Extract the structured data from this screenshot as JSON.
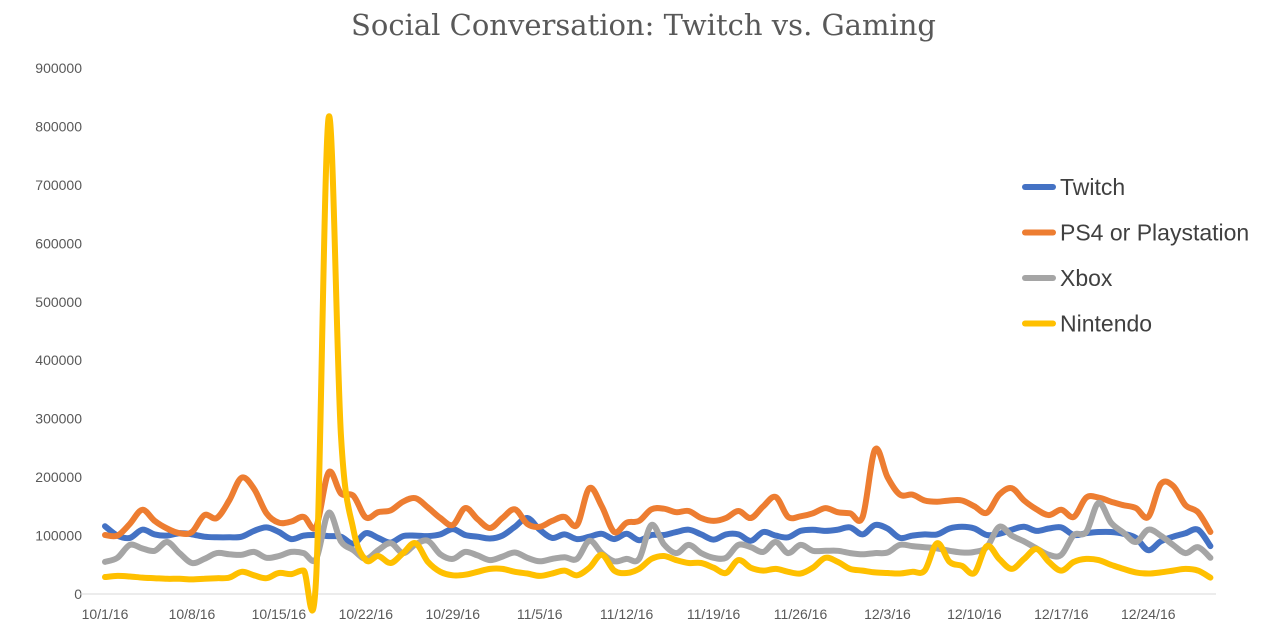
{
  "chart_data": {
    "type": "line",
    "title": "Social Conversation: Twitch vs. Gaming",
    "xlabel": "",
    "ylabel": "",
    "ylim": [
      0,
      900000
    ],
    "y_ticks": [
      "0",
      "100000",
      "200000",
      "300000",
      "400000",
      "500000",
      "600000",
      "700000",
      "800000",
      "900000"
    ],
    "x_tick_labels": [
      "10/1/16",
      "10/8/16",
      "10/15/16",
      "10/22/16",
      "10/29/16",
      "11/5/16",
      "11/12/16",
      "11/19/16",
      "11/26/16",
      "12/3/16",
      "12/10/16",
      "12/17/16",
      "12/24/16"
    ],
    "grid": false,
    "legend_position": "right",
    "x": [
      "10/1/16",
      "10/2/16",
      "10/3/16",
      "10/4/16",
      "10/5/16",
      "10/6/16",
      "10/7/16",
      "10/8/16",
      "10/9/16",
      "10/10/16",
      "10/11/16",
      "10/12/16",
      "10/13/16",
      "10/14/16",
      "10/15/16",
      "10/16/16",
      "10/17/16",
      "10/18/16",
      "10/19/16",
      "10/20/16",
      "10/21/16",
      "10/22/16",
      "10/23/16",
      "10/24/16",
      "10/25/16",
      "10/26/16",
      "10/27/16",
      "10/28/16",
      "10/29/16",
      "10/30/16",
      "10/31/16",
      "11/1/16",
      "11/2/16",
      "11/3/16",
      "11/4/16",
      "11/5/16",
      "11/6/16",
      "11/7/16",
      "11/8/16",
      "11/9/16",
      "11/10/16",
      "11/11/16",
      "11/12/16",
      "11/13/16",
      "11/14/16",
      "11/15/16",
      "11/16/16",
      "11/17/16",
      "11/18/16",
      "11/19/16",
      "11/20/16",
      "11/21/16",
      "11/22/16",
      "11/23/16",
      "11/24/16",
      "11/25/16",
      "11/26/16",
      "11/27/16",
      "11/28/16",
      "11/29/16",
      "11/30/16",
      "12/1/16",
      "12/2/16",
      "12/3/16",
      "12/4/16",
      "12/5/16",
      "12/6/16",
      "12/7/16",
      "12/8/16",
      "12/9/16",
      "12/10/16",
      "12/11/16",
      "12/12/16",
      "12/13/16",
      "12/14/16",
      "12/15/16",
      "12/16/16",
      "12/17/16",
      "12/18/16",
      "12/19/16",
      "12/20/16",
      "12/21/16",
      "12/22/16",
      "12/23/16",
      "12/24/16",
      "12/25/16",
      "12/26/16",
      "12/27/16",
      "12/28/16",
      "12/29/16"
    ],
    "series": [
      {
        "name": "Twitch",
        "color": "#4472C4",
        "values": [
          116000,
          100000,
          96000,
          110000,
          102000,
          100000,
          104000,
          102000,
          98000,
          97000,
          97000,
          98000,
          108000,
          114000,
          106000,
          94000,
          100000,
          101000,
          99000,
          98000,
          86000,
          104000,
          96000,
          88000,
          99000,
          100000,
          99000,
          102000,
          111000,
          101000,
          98000,
          95000,
          100000,
          115000,
          130000,
          110000,
          96000,
          102000,
          94000,
          98000,
          103000,
          94000,
          103000,
          92000,
          101000,
          101000,
          106000,
          110000,
          102000,
          93000,
          102000,
          102000,
          91000,
          106000,
          100000,
          97000,
          108000,
          110000,
          108000,
          110000,
          114000,
          102000,
          118000,
          112000,
          96000,
          100000,
          102000,
          102000,
          112000,
          115000,
          112000,
          101000,
          103000,
          110000,
          115000,
          108000,
          112000,
          114000,
          101000,
          104000,
          106000,
          106000,
          103000,
          96000,
          75000,
          90000,
          98000,
          104000,
          110000,
          82000
        ]
      },
      {
        "name": "PS4 or Playstation",
        "color": "#ED7D31",
        "values": [
          101000,
          100000,
          120000,
          144000,
          125000,
          112000,
          104000,
          106000,
          135000,
          130000,
          160000,
          199000,
          180000,
          138000,
          122000,
          124000,
          132000,
          115000,
          208000,
          172000,
          168000,
          131000,
          140000,
          143000,
          158000,
          164000,
          148000,
          130000,
          118000,
          147000,
          128000,
          113000,
          130000,
          145000,
          120000,
          115000,
          125000,
          132000,
          118000,
          181000,
          150000,
          106000,
          122000,
          125000,
          145000,
          146000,
          140000,
          142000,
          130000,
          125000,
          130000,
          142000,
          130000,
          150000,
          166000,
          132000,
          133000,
          138000,
          147000,
          140000,
          138000,
          132000,
          247000,
          200000,
          170000,
          170000,
          160000,
          158000,
          160000,
          160000,
          150000,
          139000,
          170000,
          181000,
          160000,
          145000,
          135000,
          144000,
          132000,
          165000,
          165000,
          158000,
          152000,
          147000,
          132000,
          188000,
          185000,
          152000,
          140000,
          106000
        ]
      },
      {
        "name": "Xbox",
        "color": "#A5A5A5",
        "values": [
          55000,
          62000,
          84000,
          78000,
          74000,
          89000,
          70000,
          53000,
          60000,
          70000,
          68000,
          67000,
          72000,
          62000,
          65000,
          72000,
          70000,
          60000,
          139000,
          90000,
          75000,
          60000,
          75000,
          87000,
          70000,
          85000,
          91000,
          68000,
          60000,
          72000,
          66000,
          58000,
          64000,
          71000,
          62000,
          56000,
          60000,
          63000,
          60000,
          91000,
          70000,
          56000,
          60000,
          60000,
          118000,
          85000,
          70000,
          84000,
          70000,
          62000,
          62000,
          84000,
          80000,
          72000,
          89000,
          70000,
          84000,
          74000,
          74000,
          74000,
          70000,
          68000,
          70000,
          71000,
          84000,
          82000,
          80000,
          78000,
          74000,
          71000,
          72000,
          80000,
          115000,
          100000,
          90000,
          78000,
          67000,
          67000,
          101000,
          106000,
          156000,
          122000,
          105000,
          89000,
          110000,
          100000,
          84000,
          70000,
          80000,
          62000
        ]
      },
      {
        "name": "Nintendo",
        "color": "#FFC000",
        "values": [
          29000,
          31000,
          30000,
          28000,
          27000,
          26000,
          26000,
          25000,
          26000,
          27000,
          28000,
          38000,
          32000,
          27000,
          36000,
          34000,
          40000,
          26000,
          815000,
          270000,
          110000,
          58000,
          65000,
          53000,
          70000,
          87000,
          55000,
          38000,
          32000,
          33000,
          38000,
          43000,
          43000,
          38000,
          35000,
          31000,
          35000,
          40000,
          32000,
          45000,
          67000,
          40000,
          36000,
          43000,
          60000,
          65000,
          58000,
          53000,
          53000,
          45000,
          36000,
          58000,
          45000,
          40000,
          43000,
          38000,
          35000,
          45000,
          62000,
          55000,
          43000,
          40000,
          37000,
          36000,
          35000,
          38000,
          40000,
          87000,
          55000,
          48000,
          36000,
          82000,
          60000,
          43000,
          60000,
          77000,
          55000,
          40000,
          55000,
          60000,
          58000,
          50000,
          43000,
          37000,
          35000,
          37000,
          40000,
          43000,
          40000,
          28000
        ]
      }
    ]
  }
}
